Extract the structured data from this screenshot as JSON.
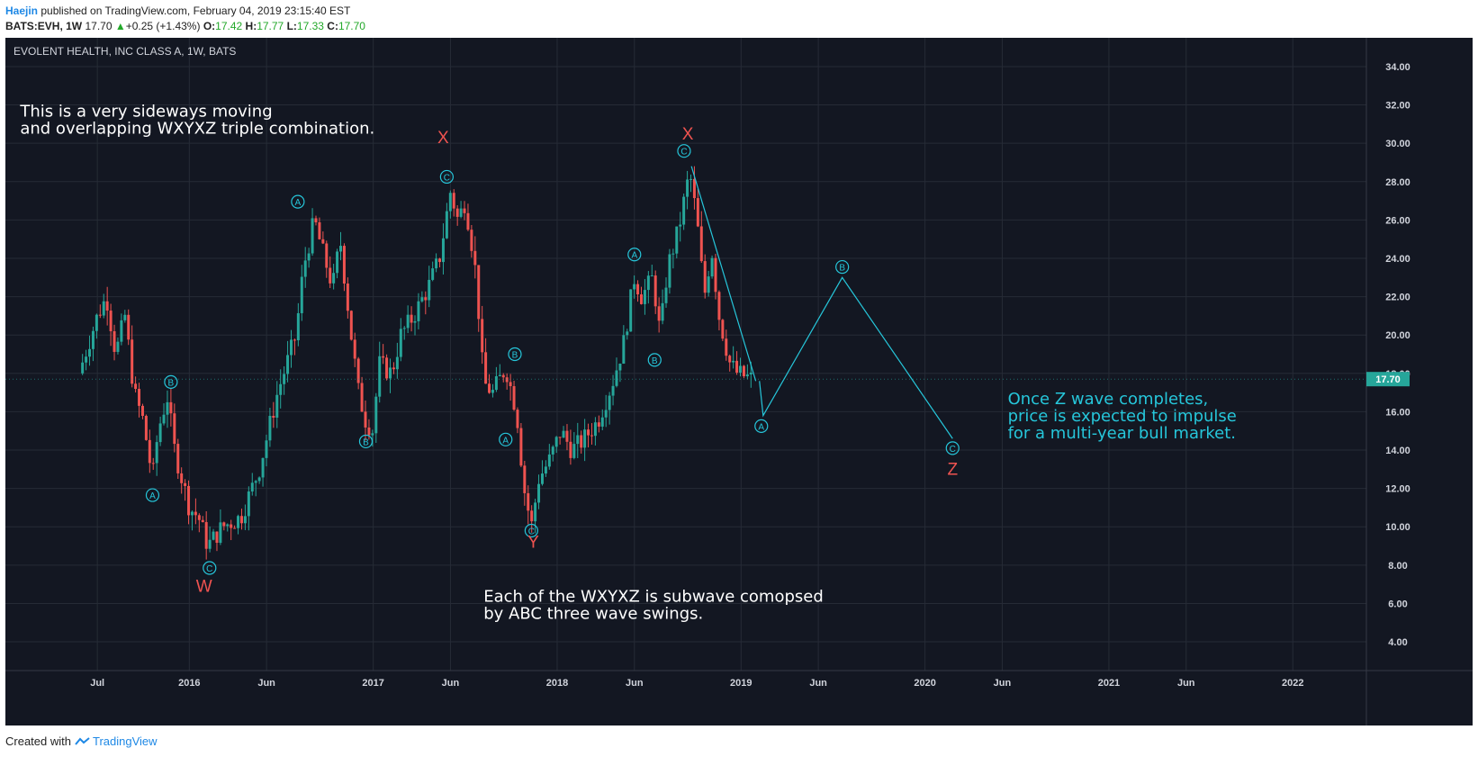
{
  "header": {
    "author": "Haejin",
    "published": " published on TradingView.com, February 04, 2019 23:15:40 EST",
    "symbol": "BATS:EVH, 1W",
    "last": "17.70",
    "up_arrow": "▲",
    "change": "+0.25 (+1.43%)",
    "o_label": "O:",
    "o": "17.42",
    "h_label": "H:",
    "h": "17.77",
    "l_label": "L:",
    "l": "17.33",
    "c_label": "C:",
    "c": "17.70"
  },
  "footer": {
    "created": "Created with",
    "brand": "TradingView"
  },
  "colors": {
    "bg": "#131722",
    "up": "#26a69a",
    "down": "#ef5350",
    "wave": "#26c6da",
    "label": "#ef5350",
    "grid": "#262b36"
  },
  "chart_data": {
    "type": "candlestick",
    "title": "EVOLENT HEALTH, INC CLASS A, 1W, BATS",
    "y_ticks": [
      "34.00",
      "32.00",
      "30.00",
      "28.00",
      "26.00",
      "24.00",
      "22.00",
      "20.00",
      "18.00",
      "16.00",
      "14.00",
      "12.00",
      "10.00",
      "8.00",
      "6.00",
      "4.00"
    ],
    "ylim": [
      2.5,
      35.5
    ],
    "x_ticks": [
      {
        "label": "Jul",
        "t": 2015.5
      },
      {
        "label": "2016",
        "t": 2016.0
      },
      {
        "label": "Jun",
        "t": 2016.42
      },
      {
        "label": "2017",
        "t": 2017.0
      },
      {
        "label": "Jun",
        "t": 2017.42
      },
      {
        "label": "2018",
        "t": 2018.0
      },
      {
        "label": "Jun",
        "t": 2018.42
      },
      {
        "label": "2019",
        "t": 2019.0
      },
      {
        "label": "Jun",
        "t": 2019.42
      },
      {
        "label": "2020",
        "t": 2020.0
      },
      {
        "label": "Jun",
        "t": 2020.42
      },
      {
        "label": "2021",
        "t": 2021.0
      },
      {
        "label": "Jun",
        "t": 2021.42
      },
      {
        "label": "2022",
        "t": 2022.0
      }
    ],
    "xlim": [
      2015.0,
      2022.4
    ],
    "last_price": "17.70",
    "price_path": [
      [
        2015.4,
        18.0
      ],
      [
        2015.45,
        19.5
      ],
      [
        2015.5,
        21.0
      ],
      [
        2015.55,
        22.0
      ],
      [
        2015.6,
        19.0
      ],
      [
        2015.65,
        21.0
      ],
      [
        2015.7,
        17.0
      ],
      [
        2015.75,
        15.5
      ],
      [
        2015.8,
        12.5
      ],
      [
        2015.83,
        15.0
      ],
      [
        2015.88,
        16.8
      ],
      [
        2015.92,
        14.0
      ],
      [
        2016.0,
        11.0
      ],
      [
        2016.05,
        10.5
      ],
      [
        2016.1,
        9.0
      ],
      [
        2016.18,
        10.0
      ],
      [
        2016.28,
        10.5
      ],
      [
        2016.38,
        13.0
      ],
      [
        2016.48,
        17.0
      ],
      [
        2016.58,
        20.0
      ],
      [
        2016.62,
        23.5
      ],
      [
        2016.68,
        26.0
      ],
      [
        2016.72,
        24.5
      ],
      [
        2016.78,
        22.5
      ],
      [
        2016.82,
        25.0
      ],
      [
        2016.88,
        20.0
      ],
      [
        2016.92,
        17.0
      ],
      [
        2016.96,
        15.5
      ],
      [
        2017.0,
        15.0
      ],
      [
        2017.03,
        18.5
      ],
      [
        2017.1,
        18.0
      ],
      [
        2017.15,
        20.0
      ],
      [
        2017.22,
        21.0
      ],
      [
        2017.3,
        22.5
      ],
      [
        2017.36,
        24.0
      ],
      [
        2017.42,
        27.5
      ],
      [
        2017.46,
        26.0
      ],
      [
        2017.5,
        27.0
      ],
      [
        2017.54,
        24.5
      ],
      [
        2017.56,
        23.0
      ],
      [
        2017.6,
        17.5
      ],
      [
        2017.65,
        17.0
      ],
      [
        2017.72,
        18.3
      ],
      [
        2017.78,
        16.0
      ],
      [
        2017.82,
        12.0
      ],
      [
        2017.86,
        10.0
      ],
      [
        2017.9,
        12.5
      ],
      [
        2017.96,
        13.5
      ],
      [
        2018.02,
        15.0
      ],
      [
        2018.08,
        14.0
      ],
      [
        2018.14,
        14.5
      ],
      [
        2018.22,
        15.5
      ],
      [
        2018.3,
        17.5
      ],
      [
        2018.36,
        19.5
      ],
      [
        2018.42,
        23.0
      ],
      [
        2018.46,
        22.0
      ],
      [
        2018.52,
        23.0
      ],
      [
        2018.56,
        20.0
      ],
      [
        2018.6,
        23.5
      ],
      [
        2018.66,
        25.5
      ],
      [
        2018.72,
        28.5
      ],
      [
        2018.76,
        26.0
      ],
      [
        2018.8,
        22.0
      ],
      [
        2018.84,
        24.5
      ],
      [
        2018.88,
        21.0
      ],
      [
        2018.94,
        18.5
      ],
      [
        2018.98,
        18.0
      ],
      [
        2019.06,
        17.7
      ]
    ],
    "wave_lines": [
      [
        [
          2018.73,
          28.8
        ],
        [
          2019.08,
          17.6
        ]
      ],
      [
        [
          2019.1,
          17.6
        ],
        [
          2019.12,
          15.8
        ],
        [
          2019.55,
          23.0
        ],
        [
          2020.15,
          14.6
        ]
      ]
    ],
    "circle_labels": [
      {
        "text": "A",
        "t": 2015.8,
        "v": 11.65
      },
      {
        "text": "B",
        "t": 2015.9,
        "v": 17.55
      },
      {
        "text": "C",
        "t": 2016.11,
        "v": 7.85
      },
      {
        "text": "A",
        "t": 2016.59,
        "v": 26.95
      },
      {
        "text": "B",
        "t": 2016.96,
        "v": 14.45
      },
      {
        "text": "C",
        "t": 2017.4,
        "v": 28.25
      },
      {
        "text": "A",
        "t": 2017.72,
        "v": 14.55
      },
      {
        "text": "B",
        "t": 2017.77,
        "v": 19.0
      },
      {
        "text": "C",
        "t": 2017.86,
        "v": 9.8
      },
      {
        "text": "A",
        "t": 2018.42,
        "v": 24.2
      },
      {
        "text": "B",
        "t": 2018.53,
        "v": 18.7
      },
      {
        "text": "C",
        "t": 2018.69,
        "v": 29.6
      },
      {
        "text": "A",
        "t": 2019.11,
        "v": 15.25
      },
      {
        "text": "B",
        "t": 2019.55,
        "v": 23.55
      },
      {
        "text": "C",
        "t": 2020.15,
        "v": 14.1
      }
    ],
    "wave_labels": [
      {
        "text": "W",
        "t": 2016.08,
        "v": 6.6
      },
      {
        "text": "X",
        "t": 2017.38,
        "v": 30.0
      },
      {
        "text": "Y",
        "t": 2017.87,
        "v": 8.9
      },
      {
        "text": "X",
        "t": 2018.71,
        "v": 30.2
      },
      {
        "text": "Z",
        "t": 2020.15,
        "v": 12.7
      }
    ],
    "annotations": [
      {
        "lines": [
          "This is a very sideways moving",
          "and overlapping WXYXZ triple combination."
        ],
        "t": 2015.08,
        "v": 31.4,
        "color": "#ffffff"
      },
      {
        "lines": [
          "Each of the WXYXZ is subwave comopsed",
          "by ABC three wave swings."
        ],
        "t": 2017.6,
        "v": 6.1,
        "color": "#ffffff"
      },
      {
        "lines": [
          "Once Z wave completes,",
          "price is expected to impulse",
          "for a multi-year bull market."
        ],
        "t": 2020.45,
        "v": 16.4,
        "color": "#26c6da"
      }
    ]
  }
}
